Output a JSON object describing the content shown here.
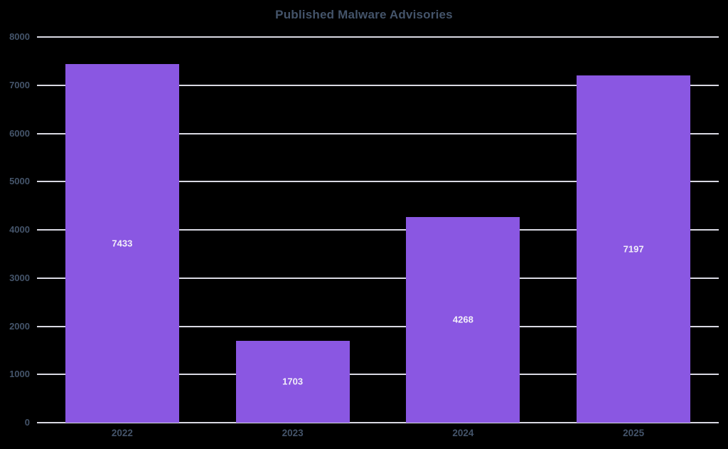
{
  "title": "Published Malware Advisories",
  "colors": {
    "background": "#000000",
    "bar_fill": "#8A57E2",
    "gridline": "#D9D9E3",
    "axis_text": "#44546A",
    "title_text": "#44546A",
    "value_label_text": "#F2EFF9"
  },
  "chart_data": {
    "type": "bar",
    "title": "Published Malware Advisories",
    "categories": [
      "2022",
      "2023",
      "2024",
      "2025"
    ],
    "values": [
      7433,
      1703,
      4268,
      7197
    ],
    "series": [
      {
        "name": "Published Malware Advisories",
        "values": [
          7433,
          1703,
          4268,
          7197
        ]
      }
    ],
    "xlabel": "",
    "ylabel": "",
    "ylim": [
      0,
      8000
    ],
    "yticks": [
      0,
      1000,
      2000,
      3000,
      4000,
      5000,
      6000,
      7000,
      8000
    ],
    "grid": true,
    "legend_position": "none",
    "bar_labels_visible": true,
    "bar_label_position": "inside-center"
  }
}
